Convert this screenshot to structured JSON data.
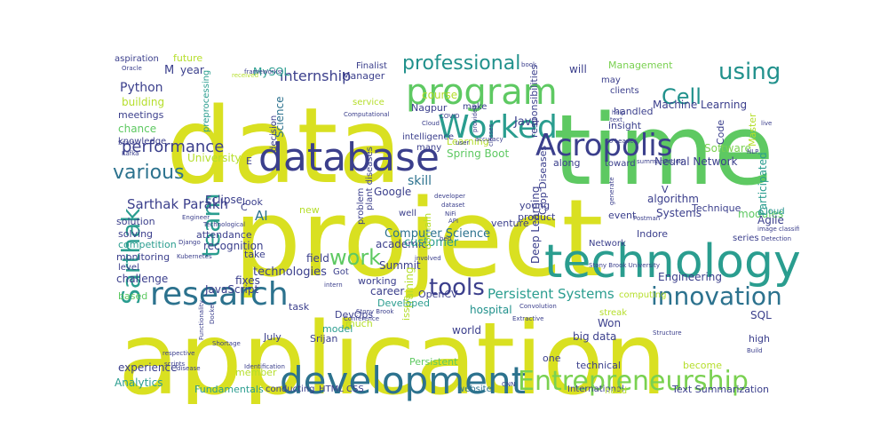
{
  "words": [
    {
      "t": "project",
      "c": "#d9e021"
    },
    {
      "t": "application",
      "c": "#d9e021"
    },
    {
      "t": "data",
      "c": "#d9e021"
    },
    {
      "t": "time",
      "c": "#5ec962"
    },
    {
      "t": "database",
      "c": "#3b3f8c"
    },
    {
      "t": "technology",
      "c": "#2a9d8f"
    },
    {
      "t": "development",
      "c": "#2c728e"
    },
    {
      "t": "program",
      "c": "#5ec962"
    },
    {
      "t": "research",
      "c": "#2c728e"
    },
    {
      "t": "Worked",
      "c": "#2a9d8f"
    },
    {
      "t": "Acropolis",
      "c": "#3b3f8c"
    },
    {
      "t": "Entrepreneurship",
      "c": "#7ad151"
    },
    {
      "t": "innovation",
      "c": "#2c728e"
    },
    {
      "t": "Sarthak",
      "c": "#2a9d8f"
    },
    {
      "t": "team",
      "c": "#2a9d8f"
    },
    {
      "t": "using",
      "c": "#21918c"
    },
    {
      "t": "Cell",
      "c": "#21918c"
    },
    {
      "t": "professional",
      "c": "#21918c"
    },
    {
      "t": "work",
      "c": "#5ec962"
    },
    {
      "t": "tools",
      "c": "#3b3f8c"
    },
    {
      "t": "various",
      "c": "#2c728e"
    },
    {
      "t": "performance",
      "c": "#3b3f8c"
    },
    {
      "t": "internship",
      "c": "#3b3f8c"
    },
    {
      "t": "Python",
      "c": "#3b3f8c"
    },
    {
      "t": "MySQL",
      "c": "#2a9d8f"
    },
    {
      "t": "year",
      "c": "#3b3f8c"
    },
    {
      "t": "M",
      "c": "#3b3f8c"
    },
    {
      "t": "aspiration",
      "c": "#3b3f8c"
    },
    {
      "t": "Finalist",
      "c": "#3b3f8c"
    },
    {
      "t": "Manager",
      "c": "#3b3f8c"
    },
    {
      "t": "will",
      "c": "#3b3f8c"
    },
    {
      "t": "Management",
      "c": "#7ad151"
    },
    {
      "t": "Machine Learning",
      "c": "#3b3f8c"
    },
    {
      "t": "clients",
      "c": "#3b3f8c"
    },
    {
      "t": "may",
      "c": "#3b3f8c"
    },
    {
      "t": "handled",
      "c": "#3b3f8c"
    },
    {
      "t": "insight",
      "c": "#3b3f8c"
    },
    {
      "t": "Java",
      "c": "#3b3f8c"
    },
    {
      "t": "course",
      "c": "#b5de2b"
    },
    {
      "t": "Nagpur",
      "c": "#3b3f8c"
    },
    {
      "t": "make",
      "c": "#3b3f8c"
    },
    {
      "t": "building",
      "c": "#b5de2b"
    },
    {
      "t": "meetings",
      "c": "#3b3f8c"
    },
    {
      "t": "chance",
      "c": "#5ec962"
    },
    {
      "t": "knowledge",
      "c": "#3b3f8c"
    },
    {
      "t": "University",
      "c": "#b5de2b"
    },
    {
      "t": "Science",
      "c": "#2c728e"
    },
    {
      "t": "Software",
      "c": "#7ad151"
    },
    {
      "t": "Learning",
      "c": "#b5de2b"
    },
    {
      "t": "Spring Boot",
      "c": "#5ec962"
    },
    {
      "t": "Neural Network",
      "c": "#3b3f8c"
    },
    {
      "t": "Sarthak Parakh",
      "c": "#3b3f8c"
    },
    {
      "t": "Eclipse",
      "c": "#3b3f8c"
    },
    {
      "t": "Google",
      "c": "#3b3f8c"
    },
    {
      "t": "skill",
      "c": "#2c728e"
    },
    {
      "t": "AI",
      "c": "#2c728e"
    },
    {
      "t": "algorithm",
      "c": "#3b3f8c"
    },
    {
      "t": "Systems",
      "c": "#3b3f8c"
    },
    {
      "t": "modules",
      "c": "#5ec962"
    },
    {
      "t": "Cloud",
      "c": "#21918c"
    },
    {
      "t": "Agile",
      "c": "#3b3f8c"
    },
    {
      "t": "event",
      "c": "#3b3f8c"
    },
    {
      "t": "Technique",
      "c": "#3b3f8c"
    },
    {
      "t": "solution",
      "c": "#3b3f8c"
    },
    {
      "t": "solving",
      "c": "#3b3f8c"
    },
    {
      "t": "competition",
      "c": "#2a9d8f"
    },
    {
      "t": "monitoring",
      "c": "#3b3f8c"
    },
    {
      "t": "level",
      "c": "#3b3f8c"
    },
    {
      "t": "attendance",
      "c": "#3b3f8c"
    },
    {
      "t": "recognition",
      "c": "#3b3f8c"
    },
    {
      "t": "challenge",
      "c": "#3b3f8c"
    },
    {
      "t": "fixes",
      "c": "#3b3f8c"
    },
    {
      "t": "based",
      "c": "#5ec962"
    },
    {
      "t": "JavaScript",
      "c": "#3b3f8c"
    },
    {
      "t": "academic",
      "c": "#3b3f8c"
    },
    {
      "t": "field",
      "c": "#3b3f8c"
    },
    {
      "t": "Computer Science",
      "c": "#2c728e"
    },
    {
      "t": "customer",
      "c": "#2a9d8f"
    },
    {
      "t": "technologies",
      "c": "#3b3f8c"
    },
    {
      "t": "Summit",
      "c": "#3b3f8c"
    },
    {
      "t": "Persistent Systems",
      "c": "#2a9d8f"
    },
    {
      "t": "Engineering",
      "c": "#3b3f8c"
    },
    {
      "t": "career",
      "c": "#3b3f8c"
    },
    {
      "t": "training",
      "c": "#b5de2b"
    },
    {
      "t": "OpenCV",
      "c": "#3b3f8c"
    },
    {
      "t": "Developed",
      "c": "#2a9d8f"
    },
    {
      "t": "DevOps",
      "c": "#3b3f8c"
    },
    {
      "t": "Srijan",
      "c": "#3b3f8c"
    },
    {
      "t": "July",
      "c": "#3b3f8c"
    },
    {
      "t": "task",
      "c": "#3b3f8c"
    },
    {
      "t": "model",
      "c": "#2a9d8f"
    },
    {
      "t": "world",
      "c": "#3b3f8c"
    },
    {
      "t": "hospital",
      "c": "#21918c"
    },
    {
      "t": "Won",
      "c": "#3b3f8c"
    },
    {
      "t": "big data",
      "c": "#3b3f8c"
    },
    {
      "t": "SQL",
      "c": "#3b3f8c"
    },
    {
      "t": "high",
      "c": "#3b3f8c"
    },
    {
      "t": "experience",
      "c": "#3b3f8c"
    },
    {
      "t": "Analytics",
      "c": "#2a9d8f"
    },
    {
      "t": "member",
      "c": "#b5de2b"
    },
    {
      "t": "Fundamentals",
      "c": "#2a9d8f"
    },
    {
      "t": "conducting",
      "c": "#3b3f8c"
    },
    {
      "t": "HTML CSS",
      "c": "#3b3f8c"
    },
    {
      "t": "website",
      "c": "#2c728e"
    },
    {
      "t": "International",
      "c": "#3b3f8c"
    },
    {
      "t": "Text Summarization",
      "c": "#3b3f8c"
    },
    {
      "t": "hand",
      "c": "#b5de2b"
    },
    {
      "t": "technical",
      "c": "#3b3f8c"
    },
    {
      "t": "become",
      "c": "#b5de2b"
    },
    {
      "t": "Persistent",
      "c": "#5ec962"
    },
    {
      "t": "one",
      "c": "#3b3f8c"
    },
    {
      "t": "Participated",
      "c": "#2a9d8f"
    },
    {
      "t": "Master",
      "c": "#b5de2b"
    },
    {
      "t": "Code",
      "c": "#3b3f8c"
    },
    {
      "t": "Deep Learning",
      "c": "#3b3f8c"
    },
    {
      "t": "Crop Diseases",
      "c": "#3b3f8c"
    },
    {
      "t": "responsibilities",
      "c": "#3b3f8c"
    },
    {
      "t": "along",
      "c": "#3b3f8c"
    },
    {
      "t": "toward",
      "c": "#3b3f8c"
    },
    {
      "t": "young",
      "c": "#3b3f8c"
    },
    {
      "t": "product",
      "c": "#3b3f8c"
    },
    {
      "t": "venture",
      "c": "#3b3f8c"
    },
    {
      "t": "Indore",
      "c": "#3b3f8c"
    },
    {
      "t": "Network",
      "c": "#3b3f8c"
    },
    {
      "t": "series",
      "c": "#3b3f8c"
    },
    {
      "t": "computing",
      "c": "#b5de2b"
    },
    {
      "t": "streak",
      "c": "#b5de2b"
    },
    {
      "t": "well",
      "c": "#3b3f8c"
    },
    {
      "t": "plant diseases",
      "c": "#3b3f8c"
    },
    {
      "t": "problem",
      "c": "#3b3f8c"
    },
    {
      "t": "new",
      "c": "#b5de2b"
    },
    {
      "t": "look",
      "c": "#3b3f8c"
    },
    {
      "t": "take",
      "c": "#3b3f8c"
    },
    {
      "t": "Got",
      "c": "#3b3f8c"
    },
    {
      "t": "working",
      "c": "#3b3f8c"
    },
    {
      "t": "much",
      "c": "#b5de2b"
    },
    {
      "t": "issue",
      "c": "#b5de2b"
    },
    {
      "t": "domain",
      "c": "#b5de2b"
    },
    {
      "t": "decision",
      "c": "#3b3f8c"
    },
    {
      "t": "preprocessing",
      "c": "#2a9d8f"
    },
    {
      "t": "future",
      "c": "#b5de2b"
    },
    {
      "t": "service",
      "c": "#b5de2b"
    },
    {
      "t": "intelligence",
      "c": "#3b3f8c"
    },
    {
      "t": "many",
      "c": "#3b3f8c"
    },
    {
      "t": "E",
      "c": "#3b3f8c"
    },
    {
      "t": "V",
      "c": "#3b3f8c"
    },
    {
      "t": "C",
      "c": "#3b3f8c"
    },
    {
      "t": "Oracle",
      "c": "#3b3f8c"
    },
    {
      "t": "received",
      "c": "#b5de2b"
    },
    {
      "t": "frameworks",
      "c": "#3b3f8c"
    },
    {
      "t": "Technological",
      "c": "#3b3f8c"
    },
    {
      "t": "Django",
      "c": "#3b3f8c"
    },
    {
      "t": "Kubernetes",
      "c": "#3b3f8c"
    },
    {
      "t": "Computational",
      "c": "#3b3f8c"
    },
    {
      "t": "accuracy",
      "c": "#3b3f8c"
    },
    {
      "t": "Co Leader",
      "c": "#3b3f8c"
    },
    {
      "t": "summarization",
      "c": "#3b3f8c"
    },
    {
      "t": "Detection",
      "c": "#3b3f8c"
    },
    {
      "t": "image classification",
      "c": "#3b3f8c"
    },
    {
      "t": "Postman",
      "c": "#3b3f8c"
    },
    {
      "t": "NiFi",
      "c": "#3b3f8c"
    },
    {
      "t": "API",
      "c": "#3b3f8c"
    },
    {
      "t": "Stony Brook University",
      "c": "#3b3f8c"
    },
    {
      "t": "Stony Brook",
      "c": "#3b3f8c"
    },
    {
      "t": "Conference",
      "c": "#3b3f8c"
    },
    {
      "t": "Convolution",
      "c": "#3b3f8c"
    },
    {
      "t": "Extractive",
      "c": "#3b3f8c"
    },
    {
      "t": "Structure",
      "c": "#3b3f8c"
    },
    {
      "t": "respective",
      "c": "#3b3f8c"
    },
    {
      "t": "disease",
      "c": "#3b3f8c"
    },
    {
      "t": "Identification",
      "c": "#3b3f8c"
    },
    {
      "t": "Functionality",
      "c": "#3b3f8c"
    },
    {
      "t": "Docker",
      "c": "#3b3f8c"
    },
    {
      "t": "scripts",
      "c": "#3b3f8c"
    },
    {
      "t": "Build",
      "c": "#3b3f8c"
    },
    {
      "t": "CNN",
      "c": "#3b3f8c"
    },
    {
      "t": "help",
      "c": "#3b3f8c"
    },
    {
      "t": "text",
      "c": "#3b3f8c"
    },
    {
      "t": "book",
      "c": "#3b3f8c"
    },
    {
      "t": "COVID",
      "c": "#3b3f8c"
    },
    {
      "t": "classes",
      "c": "#3b3f8c"
    },
    {
      "t": "provided",
      "c": "#3b3f8c"
    },
    {
      "t": "Scala",
      "c": "#3b3f8c"
    },
    {
      "t": "Kafka",
      "c": "#3b3f8c"
    },
    {
      "t": "dataset",
      "c": "#3b3f8c"
    },
    {
      "t": "bed",
      "c": "#3b3f8c"
    },
    {
      "t": "Engineer",
      "c": "#3b3f8c"
    },
    {
      "t": "generate",
      "c": "#3b3f8c"
    },
    {
      "t": "developer",
      "c": "#3b3f8c"
    },
    {
      "t": "involved",
      "c": "#3b3f8c"
    },
    {
      "t": "intern",
      "c": "#3b3f8c"
    },
    {
      "t": "user",
      "c": "#3b3f8c"
    },
    {
      "t": "NLP",
      "c": "#3b3f8c"
    },
    {
      "t": "live",
      "c": "#3b3f8c"
    },
    {
      "t": "Cloud",
      "c": "#3b3f8c"
    },
    {
      "t": "Shortage",
      "c": "#3b3f8c"
    },
    {
      "t": "find",
      "c": "#3b3f8c"
    },
    {
      "t": "Linux",
      "c": "#3b3f8c"
    }
  ]
}
